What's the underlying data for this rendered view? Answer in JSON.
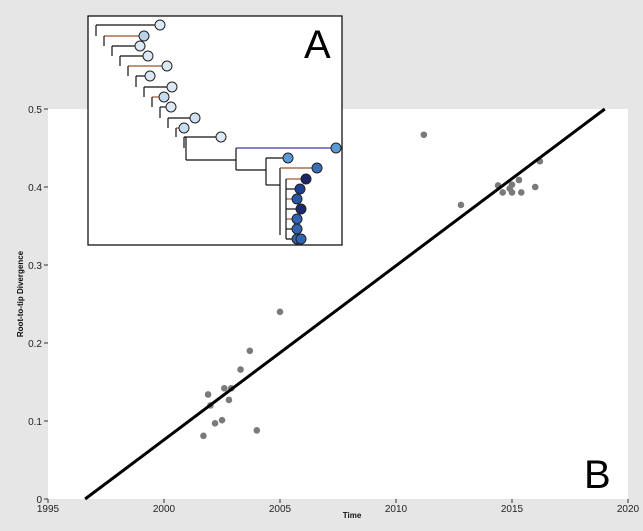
{
  "chart_data": {
    "type": "scatter",
    "xlabel": "Time",
    "ylabel": "Root-to-tip Divergence",
    "xlim": [
      1995,
      2020
    ],
    "ylim": [
      0,
      0.5
    ],
    "x_ticks": [
      1995,
      2000,
      2005,
      2010,
      2015,
      2020
    ],
    "y_ticks": [
      0,
      0.1,
      0.2,
      0.3,
      0.4,
      0.5
    ],
    "y_tick_labels": [
      "0",
      "0.1",
      "0.2",
      "0.3",
      "0.4",
      "0.5"
    ],
    "grid": false,
    "points": [
      {
        "x": 2001.7,
        "y": 0.081
      },
      {
        "x": 2001.9,
        "y": 0.134
      },
      {
        "x": 2002.0,
        "y": 0.12
      },
      {
        "x": 2002.2,
        "y": 0.097
      },
      {
        "x": 2002.5,
        "y": 0.101
      },
      {
        "x": 2002.6,
        "y": 0.142
      },
      {
        "x": 2002.8,
        "y": 0.127
      },
      {
        "x": 2002.9,
        "y": 0.142
      },
      {
        "x": 2003.3,
        "y": 0.166
      },
      {
        "x": 2003.7,
        "y": 0.19
      },
      {
        "x": 2004.0,
        "y": 0.088
      },
      {
        "x": 2005.0,
        "y": 0.24
      },
      {
        "x": 2011.2,
        "y": 0.467
      },
      {
        "x": 2012.8,
        "y": 0.377
      },
      {
        "x": 2014.4,
        "y": 0.402
      },
      {
        "x": 2014.6,
        "y": 0.393
      },
      {
        "x": 2014.9,
        "y": 0.398
      },
      {
        "x": 2015.0,
        "y": 0.393
      },
      {
        "x": 2015.0,
        "y": 0.403
      },
      {
        "x": 2015.3,
        "y": 0.409
      },
      {
        "x": 2015.4,
        "y": 0.393
      },
      {
        "x": 2016.0,
        "y": 0.4
      },
      {
        "x": 2016.2,
        "y": 0.433
      }
    ],
    "regression_line": {
      "x": [
        1996.6,
        2019.0
      ],
      "y": [
        0,
        0.5
      ]
    },
    "point_color": "#7a7a7a",
    "line_color": "#000000",
    "panel_labels": [
      "A",
      "B"
    ],
    "inset_tree": {
      "type": "phylogenetic-tree",
      "tip_colors": [
        "#dce9f5",
        "#b9d3ec",
        "#dce9f5",
        "#dce9f5",
        "#dce9f5",
        "#dce9f5",
        "#dce9f5",
        "#c8dcef",
        "#dce9f5",
        "#cfe1f2",
        "#c8dcef",
        "#dce9f5",
        "#5b9bd5",
        "#5b9bd5",
        "#3a6fb8",
        "#1a2466",
        "#1f3f8f",
        "#2a58a8",
        "#1a2a6e",
        "#2f63b4",
        "#2f63b4",
        "#2f63b4",
        "#2f63b4"
      ]
    }
  }
}
